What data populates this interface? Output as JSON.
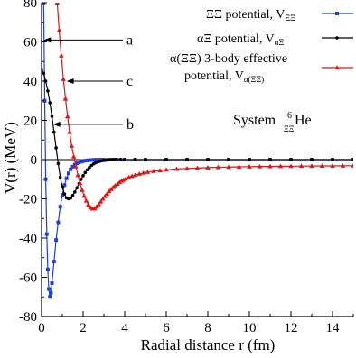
{
  "chart_data": {
    "type": "line",
    "xlabel": "Radial distance r (fm)",
    "ylabel": "V(r)  (MeV)",
    "xlim": [
      0,
      15
    ],
    "ylim": [
      -80,
      80
    ],
    "x_ticks": [
      "0",
      "2",
      "4",
      "6",
      "8",
      "10",
      "12",
      "14"
    ],
    "y_ticks": [
      "80",
      "60",
      "40",
      "20",
      "0",
      "-20",
      "-40",
      "-60",
      "-80"
    ],
    "legend_position": "top-right",
    "system_label": "System",
    "system_nucleus": "He",
    "system_mass_number": "6",
    "system_subscript": "ΞΞ",
    "annotations": [
      {
        "label": "a",
        "x": 0.1,
        "y": 61
      },
      {
        "label": "c",
        "x": 1.2,
        "y": 40
      },
      {
        "label": "b",
        "x": 0.55,
        "y": 18
      }
    ],
    "series": [
      {
        "name": "ΞΞ potential, V",
        "name_sub": "ΞΞ",
        "color": "#1f3fd8",
        "marker": "square",
        "x": [
          0.1,
          0.15,
          0.2,
          0.25,
          0.3,
          0.35,
          0.4,
          0.45,
          0.5,
          0.6,
          0.7,
          0.8,
          0.9,
          1.0,
          1.1,
          1.2,
          1.3,
          1.4,
          1.5,
          1.6,
          1.7,
          1.8,
          1.9,
          2.0,
          2.1,
          2.2,
          2.3,
          2.4,
          2.5,
          2.6,
          2.7,
          2.8,
          2.9,
          3.0,
          3.2,
          3.4,
          3.6,
          3.8,
          4.0,
          4.5,
          5,
          6,
          7,
          8,
          9,
          10,
          11,
          12,
          13,
          14,
          15
        ],
        "y": [
          80,
          30,
          -10,
          -38,
          -56,
          -66,
          -70,
          -68,
          -63,
          -52,
          -41,
          -32,
          -24,
          -18,
          -13,
          -9.5,
          -7,
          -5,
          -3.6,
          -2.6,
          -1.9,
          -1.4,
          -1.0,
          -0.75,
          -0.55,
          -0.4,
          -0.3,
          -0.22,
          -0.15,
          -0.1,
          -0.07,
          -0.05,
          -0.03,
          -0.02,
          -0.01,
          0,
          0,
          0,
          0,
          0,
          0,
          0,
          0,
          0,
          0,
          0,
          0,
          0,
          0,
          0,
          0
        ]
      },
      {
        "name": "αΞ potential, V",
        "name_sub": "αΞ",
        "color": "#000000",
        "marker": "circle",
        "x": [
          0,
          0.1,
          0.2,
          0.3,
          0.4,
          0.5,
          0.6,
          0.7,
          0.8,
          0.9,
          1.0,
          1.1,
          1.2,
          1.3,
          1.4,
          1.5,
          1.6,
          1.7,
          1.8,
          1.9,
          2.0,
          2.1,
          2.2,
          2.3,
          2.4,
          2.5,
          2.6,
          2.7,
          2.8,
          2.9,
          3.0,
          3.1,
          3.2,
          3.3,
          3.4,
          3.5,
          3.6,
          3.8,
          4.0,
          4.5,
          5,
          6,
          7,
          8,
          9,
          10,
          11,
          12,
          13,
          14,
          15
        ],
        "y": [
          46,
          44,
          40,
          35,
          29,
          22,
          14,
          6,
          -2,
          -9,
          -14,
          -17.5,
          -19.5,
          -20,
          -19.6,
          -18.3,
          -16.5,
          -14.4,
          -12.2,
          -10.1,
          -8.2,
          -6.6,
          -5.2,
          -4.0,
          -3.0,
          -2.2,
          -1.6,
          -1.2,
          -0.85,
          -0.6,
          -0.4,
          -0.3,
          -0.2,
          -0.12,
          -0.08,
          -0.05,
          -0.03,
          -0.01,
          0,
          0,
          0,
          0,
          0,
          0,
          0,
          0,
          0,
          0,
          0,
          0,
          0
        ]
      },
      {
        "name": "α(ΞΞ) 3-body effective",
        "name_line2": "potential, V",
        "name_sub": "α(ΞΞ)",
        "color": "#e01515",
        "marker": "triangle",
        "x": [
          0.75,
          0.85,
          0.95,
          1.05,
          1.15,
          1.25,
          1.35,
          1.45,
          1.55,
          1.65,
          1.75,
          1.85,
          1.95,
          2.05,
          2.15,
          2.25,
          2.35,
          2.45,
          2.55,
          2.65,
          2.75,
          2.85,
          2.95,
          3.05,
          3.15,
          3.25,
          3.35,
          3.45,
          3.55,
          3.65,
          3.75,
          3.85,
          3.95,
          4.05,
          4.2,
          4.35,
          4.5,
          4.7,
          4.9,
          5.1,
          5.4,
          5.7,
          6.0,
          6.5,
          7.0,
          7.5,
          8.0,
          8.5,
          9.0,
          9.5,
          10,
          10.5,
          11,
          11.5,
          12,
          12.5,
          13,
          13.5,
          14,
          14.5,
          15
        ],
        "y": [
          80,
          66,
          53,
          41,
          31,
          22,
          14,
          7,
          1.5,
          -3.5,
          -8,
          -12,
          -15.5,
          -18.5,
          -21,
          -23,
          -24.4,
          -25,
          -24.8,
          -24,
          -22.8,
          -21.5,
          -20,
          -18.7,
          -17.4,
          -16.2,
          -15.1,
          -14.1,
          -13.2,
          -12.4,
          -11.6,
          -10.9,
          -10.3,
          -9.7,
          -9.0,
          -8.4,
          -7.9,
          -7.3,
          -6.8,
          -6.4,
          -5.9,
          -5.5,
          -5.2,
          -4.8,
          -4.5,
          -4.3,
          -4.1,
          -3.9,
          -3.8,
          -3.7,
          -3.6,
          -3.5,
          -3.45,
          -3.4,
          -3.35,
          -3.3,
          -3.25,
          -3.2,
          -3.2,
          -3.15,
          -3.1
        ]
      }
    ]
  }
}
